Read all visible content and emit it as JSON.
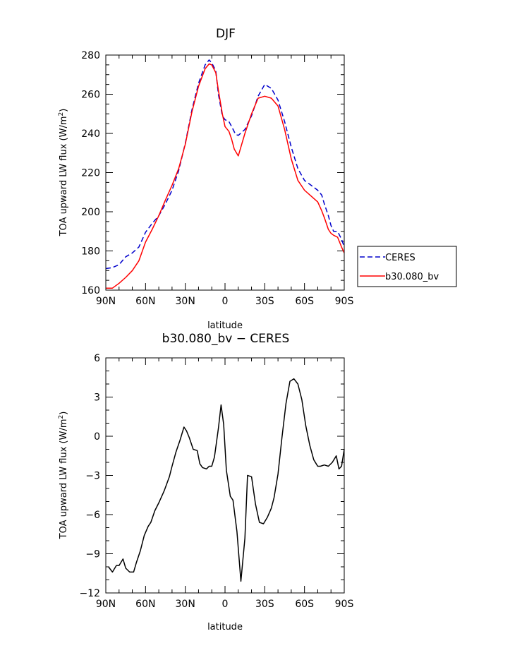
{
  "chart_data": [
    {
      "type": "line",
      "title": "DJF",
      "xlabel": "latitude",
      "ylabel": "TOA upward LW flux (W/m",
      "ylabel_sup": "2",
      "ylabel_end": ")",
      "xlim": [
        90,
        -90
      ],
      "ylim": [
        160,
        280
      ],
      "xticks": [
        90,
        60,
        30,
        0,
        -30,
        -60,
        -90
      ],
      "xtick_labels": [
        "90N",
        "60N",
        "30N",
        "0",
        "30S",
        "60S",
        "90S"
      ],
      "yticks": [
        160,
        180,
        200,
        220,
        240,
        260,
        280
      ],
      "ytick_labels": [
        "160",
        "180",
        "200",
        "220",
        "240",
        "260",
        "280"
      ],
      "legend": "right",
      "series": [
        {
          "name": "CERES",
          "color": "#0000cc",
          "dash": true,
          "x": [
            90,
            85,
            80,
            75,
            70,
            65,
            60,
            55,
            50,
            45,
            40,
            35,
            30,
            25,
            20,
            15,
            12,
            10,
            7,
            5,
            2,
            0,
            -3,
            -5,
            -8,
            -10,
            -15,
            -20,
            -25,
            -30,
            -35,
            -40,
            -45,
            -50,
            -55,
            -60,
            -65,
            -70,
            -73,
            -75,
            -78,
            -80,
            -82,
            -85,
            -88,
            -90
          ],
          "y": [
            171,
            171.5,
            173,
            177,
            179,
            182,
            189.5,
            194,
            198,
            204,
            211,
            221,
            235,
            252,
            265.5,
            275,
            277.5,
            276,
            272,
            260,
            249,
            247,
            246,
            243.5,
            239.5,
            239,
            242,
            249,
            259,
            265,
            263,
            257,
            246,
            233,
            222,
            216,
            213.5,
            211,
            208.5,
            204,
            198,
            193,
            190,
            190,
            186,
            182
          ]
        },
        {
          "name": "b30.080_bv",
          "color": "#ff0000",
          "dash": false,
          "x": [
            90,
            85,
            80,
            75,
            70,
            65,
            60,
            55,
            50,
            45,
            40,
            35,
            30,
            25,
            20,
            15,
            12,
            10,
            7,
            5,
            2,
            0,
            -3,
            -5,
            -7,
            -10,
            -15,
            -20,
            -25,
            -30,
            -35,
            -40,
            -45,
            -50,
            -55,
            -60,
            -65,
            -70,
            -73,
            -75,
            -78,
            -80,
            -82,
            -85,
            -88,
            -90
          ],
          "y": [
            161,
            161,
            163.5,
            166.5,
            170,
            175,
            184.5,
            191,
            198,
            206,
            213.5,
            222,
            234.5,
            251,
            264,
            273,
            275.5,
            275,
            271,
            262,
            250,
            243.5,
            241,
            237,
            232,
            228.5,
            240,
            250,
            258,
            259,
            258,
            254,
            242,
            227,
            216,
            211,
            208,
            205,
            200.5,
            197,
            191,
            189,
            188,
            187,
            182,
            179
          ]
        }
      ]
    },
    {
      "type": "line",
      "title": "b30.080_bv − CERES",
      "xlabel": "latitude",
      "ylabel": "TOA upward LW flux (W/m",
      "ylabel_sup": "2",
      "ylabel_end": ")",
      "xlim": [
        90,
        -90
      ],
      "ylim": [
        -12,
        6
      ],
      "xticks": [
        90,
        60,
        30,
        0,
        -30,
        -60,
        -90
      ],
      "xtick_labels": [
        "90N",
        "60N",
        "30N",
        "0",
        "30S",
        "60S",
        "90S"
      ],
      "yticks": [
        -12,
        -9,
        -6,
        -3,
        0,
        3,
        6
      ],
      "ytick_labels": [
        "−12",
        "−9",
        "−6",
        "−3",
        "0",
        "3",
        "6"
      ],
      "series": [
        {
          "color": "#000000",
          "dash": false,
          "x": [
            88,
            85,
            82,
            80,
            77,
            75,
            72,
            69,
            67,
            64,
            61,
            58,
            56,
            53,
            50,
            46,
            42,
            40,
            37,
            34,
            31,
            29,
            27,
            24,
            21,
            19,
            17,
            14,
            12,
            10,
            8,
            5,
            3,
            1,
            -1,
            -4,
            -6,
            -9,
            -12,
            -15,
            -17,
            -20,
            -23,
            -26,
            -29,
            -32,
            -35,
            -37,
            -40,
            -43,
            -46,
            -49,
            -52,
            -55,
            -58,
            -61,
            -64,
            -67,
            -70,
            -72,
            -75,
            -78,
            -81,
            -84,
            -86,
            -88,
            -90
          ],
          "y": [
            -10,
            -10.4,
            -9.9,
            -9.9,
            -9.4,
            -10.1,
            -10.4,
            -10.4,
            -9.7,
            -8.8,
            -7.6,
            -6.9,
            -6.6,
            -5.7,
            -5.1,
            -4.2,
            -3.1,
            -2.3,
            -1.2,
            -0.3,
            0.7,
            0.4,
            -0.1,
            -1,
            -1.1,
            -2.1,
            -2.4,
            -2.5,
            -2.3,
            -2.3,
            -1.6,
            0.6,
            2.4,
            0.9,
            -2.6,
            -4.6,
            -4.9,
            -7.3,
            -11.1,
            -7.8,
            -3,
            -3.1,
            -5.2,
            -6.6,
            -6.7,
            -6.2,
            -5.5,
            -4.7,
            -2.9,
            -0.1,
            2.5,
            4.2,
            4.4,
            4,
            2.8,
            0.8,
            -0.7,
            -1.8,
            -2.3,
            -2.3,
            -2.2,
            -2.3,
            -2,
            -1.5,
            -2.5,
            -2.3,
            -1
          ]
        }
      ]
    }
  ]
}
